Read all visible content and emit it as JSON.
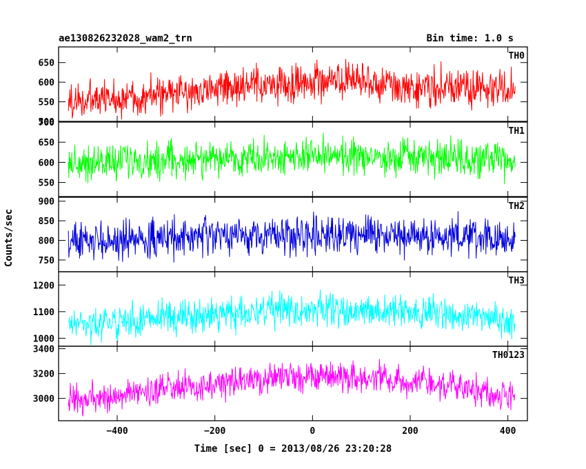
{
  "header": {
    "title_left": "ae130826232028_wam2_trn",
    "title_right": "Bin time: 1.0 s"
  },
  "chart_data": {
    "type": "line",
    "title": "ae130826232028_wam2_trn",
    "subtitle": "Bin time: 1.0 s",
    "xlabel": "Time [sec] 0 = 2013/08/26 23:20:28",
    "ylabel": "Counts/sec",
    "xlim": [
      -520,
      440
    ],
    "x_ticks": [
      -400,
      -200,
      0,
      200,
      400
    ],
    "x_tick_labels": [
      "−400",
      "−200",
      "0",
      "200",
      "400"
    ],
    "x_range_data": [
      -500,
      415
    ],
    "grid": false,
    "panels": [
      {
        "name": "TH0",
        "color": "#ff0000",
        "ylim": [
          500,
          690
        ],
        "y_ticks": [
          500,
          550,
          600,
          650
        ],
        "y_tick_labels": [
          "500",
          "550",
          "600",
          "650"
        ],
        "trend_x": [
          -500,
          -300,
          -200,
          -150,
          -50,
          0,
          100,
          200,
          300,
          415
        ],
        "trend_y": [
          550,
          568,
          585,
          587,
          593,
          605,
          597,
          590,
          585,
          578
        ],
        "spread": 38
      },
      {
        "name": "TH1",
        "color": "#00ff00",
        "ylim": [
          515,
          700
        ],
        "y_ticks": [
          550,
          600,
          650,
          700
        ],
        "y_tick_labels": [
          "550",
          "600",
          "650",
          "700"
        ],
        "trend_x": [
          -500,
          -300,
          -150,
          0,
          150,
          300,
          415
        ],
        "trend_y": [
          598,
          605,
          610,
          615,
          612,
          607,
          600
        ],
        "spread": 35
      },
      {
        "name": "TH2",
        "color": "#0000dd",
        "ylim": [
          720,
          910
        ],
        "y_ticks": [
          750,
          800,
          850,
          900
        ],
        "y_tick_labels": [
          "750",
          "800",
          "850",
          "900"
        ],
        "trend_x": [
          -500,
          -300,
          -150,
          0,
          150,
          300,
          415
        ],
        "trend_y": [
          795,
          805,
          812,
          818,
          815,
          808,
          798
        ],
        "spread": 38
      },
      {
        "name": "TH3",
        "color": "#00ffff",
        "ylim": [
          970,
          1250
        ],
        "y_ticks": [
          1000,
          1100,
          1200
        ],
        "y_tick_labels": [
          "1000",
          "1100",
          "1200"
        ],
        "trend_x": [
          -500,
          -300,
          -150,
          0,
          150,
          300,
          415
        ],
        "trend_y": [
          1050,
          1075,
          1095,
          1110,
          1105,
          1085,
          1065
        ],
        "spread": 48
      },
      {
        "name": "TH0123",
        "color": "#ff00ff",
        "ylim": [
          2820,
          3420
        ],
        "y_ticks": [
          3000,
          3200,
          3400
        ],
        "y_tick_labels": [
          "3000",
          "3200",
          "3400"
        ],
        "trend_x": [
          -500,
          -300,
          -150,
          0,
          150,
          300,
          415
        ],
        "trend_y": [
          2970,
          3070,
          3130,
          3180,
          3160,
          3090,
          3010
        ],
        "spread": 95
      }
    ]
  }
}
